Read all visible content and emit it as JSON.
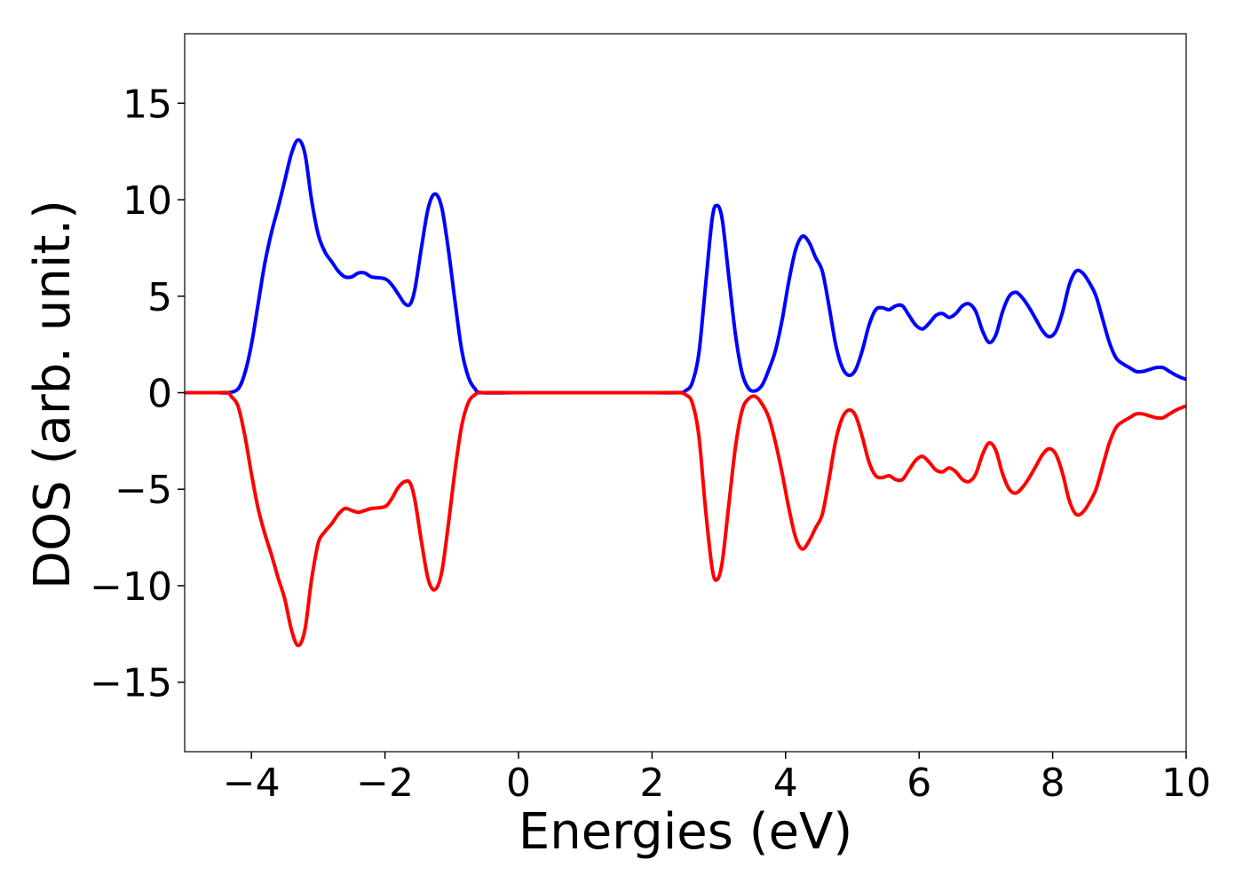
{
  "chart_data": {
    "type": "line",
    "title": "",
    "xlabel": "Energies (eV)",
    "ylabel": "DOS (arb. unit.)",
    "xlim": [
      -5,
      10
    ],
    "ylim": [
      -18.6,
      18.6
    ],
    "grid": false,
    "xticks": [
      -4,
      -2,
      0,
      2,
      4,
      6,
      8,
      10
    ],
    "xtick_labels": [
      "−4",
      "−2",
      "0",
      "2",
      "4",
      "6",
      "8",
      "10"
    ],
    "yticks": [
      -15,
      -10,
      -5,
      0,
      5,
      10,
      15
    ],
    "ytick_labels": [
      "−15",
      "−10",
      "−5",
      "0",
      "5",
      "10",
      "15"
    ],
    "series": [
      {
        "color": "#0000ff",
        "points": [
          [
            -5.0,
            0.0
          ],
          [
            -4.5,
            0.0
          ],
          [
            -4.35,
            0.0
          ],
          [
            -4.2,
            0.2
          ],
          [
            -4.1,
            1.0
          ],
          [
            -4.0,
            2.5
          ],
          [
            -3.9,
            4.6
          ],
          [
            -3.8,
            6.7
          ],
          [
            -3.7,
            8.3
          ],
          [
            -3.6,
            9.6
          ],
          [
            -3.5,
            11.0
          ],
          [
            -3.4,
            12.4
          ],
          [
            -3.3,
            13.1
          ],
          [
            -3.2,
            12.4
          ],
          [
            -3.1,
            10.0
          ],
          [
            -3.0,
            8.2
          ],
          [
            -2.9,
            7.3
          ],
          [
            -2.8,
            6.8
          ],
          [
            -2.7,
            6.3
          ],
          [
            -2.6,
            6.0
          ],
          [
            -2.5,
            6.0
          ],
          [
            -2.4,
            6.2
          ],
          [
            -2.3,
            6.2
          ],
          [
            -2.2,
            6.0
          ],
          [
            -2.0,
            5.9
          ],
          [
            -1.9,
            5.6
          ],
          [
            -1.8,
            5.1
          ],
          [
            -1.7,
            4.6
          ],
          [
            -1.62,
            4.6
          ],
          [
            -1.55,
            5.4
          ],
          [
            -1.45,
            7.6
          ],
          [
            -1.35,
            9.6
          ],
          [
            -1.25,
            10.3
          ],
          [
            -1.15,
            9.6
          ],
          [
            -1.05,
            7.4
          ],
          [
            -0.95,
            4.7
          ],
          [
            -0.85,
            2.2
          ],
          [
            -0.75,
            0.8
          ],
          [
            -0.65,
            0.2
          ],
          [
            -0.55,
            0.0
          ],
          [
            0.0,
            0.0
          ],
          [
            1.0,
            0.0
          ],
          [
            2.0,
            0.0
          ],
          [
            2.4,
            0.0
          ],
          [
            2.5,
            0.1
          ],
          [
            2.6,
            0.5
          ],
          [
            2.7,
            2.0
          ],
          [
            2.8,
            5.5
          ],
          [
            2.9,
            9.0
          ],
          [
            2.97,
            9.7
          ],
          [
            3.05,
            9.0
          ],
          [
            3.15,
            6.0
          ],
          [
            3.25,
            3.0
          ],
          [
            3.35,
            1.0
          ],
          [
            3.45,
            0.2
          ],
          [
            3.55,
            0.1
          ],
          [
            3.65,
            0.4
          ],
          [
            3.75,
            1.2
          ],
          [
            3.85,
            2.2
          ],
          [
            3.95,
            3.8
          ],
          [
            4.05,
            5.8
          ],
          [
            4.15,
            7.4
          ],
          [
            4.25,
            8.1
          ],
          [
            4.35,
            7.8
          ],
          [
            4.45,
            7.0
          ],
          [
            4.55,
            6.3
          ],
          [
            4.65,
            4.5
          ],
          [
            4.75,
            2.5
          ],
          [
            4.85,
            1.3
          ],
          [
            4.95,
            0.9
          ],
          [
            5.05,
            1.2
          ],
          [
            5.15,
            2.2
          ],
          [
            5.25,
            3.5
          ],
          [
            5.35,
            4.3
          ],
          [
            5.45,
            4.4
          ],
          [
            5.55,
            4.3
          ],
          [
            5.65,
            4.5
          ],
          [
            5.75,
            4.5
          ],
          [
            5.85,
            4.0
          ],
          [
            5.95,
            3.5
          ],
          [
            6.05,
            3.3
          ],
          [
            6.15,
            3.6
          ],
          [
            6.25,
            4.0
          ],
          [
            6.35,
            4.1
          ],
          [
            6.45,
            3.9
          ],
          [
            6.55,
            4.1
          ],
          [
            6.65,
            4.5
          ],
          [
            6.75,
            4.6
          ],
          [
            6.85,
            4.2
          ],
          [
            6.95,
            3.2
          ],
          [
            7.05,
            2.6
          ],
          [
            7.15,
            3.0
          ],
          [
            7.25,
            4.2
          ],
          [
            7.35,
            5.0
          ],
          [
            7.45,
            5.2
          ],
          [
            7.55,
            4.9
          ],
          [
            7.65,
            4.4
          ],
          [
            7.75,
            3.8
          ],
          [
            7.85,
            3.2
          ],
          [
            7.95,
            2.9
          ],
          [
            8.05,
            3.2
          ],
          [
            8.15,
            4.2
          ],
          [
            8.25,
            5.6
          ],
          [
            8.35,
            6.3
          ],
          [
            8.45,
            6.2
          ],
          [
            8.55,
            5.7
          ],
          [
            8.65,
            5.0
          ],
          [
            8.75,
            3.8
          ],
          [
            8.85,
            2.6
          ],
          [
            8.95,
            1.8
          ],
          [
            9.05,
            1.5
          ],
          [
            9.15,
            1.3
          ],
          [
            9.25,
            1.1
          ],
          [
            9.35,
            1.1
          ],
          [
            9.45,
            1.2
          ],
          [
            9.55,
            1.3
          ],
          [
            9.65,
            1.3
          ],
          [
            9.75,
            1.1
          ],
          [
            9.85,
            0.9
          ],
          [
            9.95,
            0.75
          ],
          [
            10.0,
            0.7
          ]
        ]
      },
      {
        "color": "#ff0000",
        "points": [
          [
            -5.0,
            0.0
          ],
          [
            -4.5,
            0.0
          ],
          [
            -4.35,
            0.0
          ],
          [
            -4.3,
            -0.2
          ],
          [
            -4.2,
            -0.7
          ],
          [
            -4.1,
            -2.2
          ],
          [
            -4.0,
            -4.2
          ],
          [
            -3.9,
            -6.0
          ],
          [
            -3.8,
            -7.3
          ],
          [
            -3.7,
            -8.4
          ],
          [
            -3.6,
            -9.6
          ],
          [
            -3.5,
            -10.7
          ],
          [
            -3.4,
            -12.3
          ],
          [
            -3.3,
            -13.1
          ],
          [
            -3.2,
            -12.3
          ],
          [
            -3.1,
            -9.7
          ],
          [
            -3.0,
            -7.8
          ],
          [
            -2.9,
            -7.2
          ],
          [
            -2.8,
            -6.8
          ],
          [
            -2.7,
            -6.3
          ],
          [
            -2.6,
            -6.0
          ],
          [
            -2.5,
            -6.1
          ],
          [
            -2.4,
            -6.2
          ],
          [
            -2.3,
            -6.1
          ],
          [
            -2.2,
            -6.0
          ],
          [
            -2.0,
            -5.9
          ],
          [
            -1.9,
            -5.5
          ],
          [
            -1.8,
            -4.9
          ],
          [
            -1.7,
            -4.6
          ],
          [
            -1.62,
            -4.7
          ],
          [
            -1.55,
            -5.6
          ],
          [
            -1.45,
            -7.8
          ],
          [
            -1.35,
            -9.7
          ],
          [
            -1.25,
            -10.2
          ],
          [
            -1.15,
            -9.3
          ],
          [
            -1.05,
            -6.8
          ],
          [
            -0.95,
            -4.0
          ],
          [
            -0.85,
            -1.7
          ],
          [
            -0.75,
            -0.5
          ],
          [
            -0.65,
            -0.1
          ],
          [
            -0.55,
            0.0
          ],
          [
            0.0,
            0.0
          ],
          [
            1.0,
            0.0
          ],
          [
            2.0,
            0.0
          ],
          [
            2.4,
            0.0
          ],
          [
            2.5,
            -0.1
          ],
          [
            2.6,
            -0.5
          ],
          [
            2.7,
            -2.2
          ],
          [
            2.8,
            -6.0
          ],
          [
            2.9,
            -9.1
          ],
          [
            2.97,
            -9.7
          ],
          [
            3.05,
            -8.8
          ],
          [
            3.15,
            -5.8
          ],
          [
            3.25,
            -2.8
          ],
          [
            3.35,
            -0.9
          ],
          [
            3.45,
            -0.3
          ],
          [
            3.55,
            -0.2
          ],
          [
            3.65,
            -0.6
          ],
          [
            3.75,
            -1.3
          ],
          [
            3.85,
            -2.6
          ],
          [
            3.95,
            -4.2
          ],
          [
            4.05,
            -6.0
          ],
          [
            4.15,
            -7.5
          ],
          [
            4.25,
            -8.1
          ],
          [
            4.35,
            -7.7
          ],
          [
            4.45,
            -7.0
          ],
          [
            4.55,
            -6.3
          ],
          [
            4.65,
            -4.5
          ],
          [
            4.75,
            -2.5
          ],
          [
            4.85,
            -1.3
          ],
          [
            4.95,
            -0.9
          ],
          [
            5.05,
            -1.2
          ],
          [
            5.15,
            -2.3
          ],
          [
            5.25,
            -3.6
          ],
          [
            5.35,
            -4.3
          ],
          [
            5.45,
            -4.4
          ],
          [
            5.55,
            -4.3
          ],
          [
            5.65,
            -4.5
          ],
          [
            5.75,
            -4.5
          ],
          [
            5.85,
            -4.0
          ],
          [
            5.95,
            -3.5
          ],
          [
            6.05,
            -3.3
          ],
          [
            6.15,
            -3.6
          ],
          [
            6.25,
            -4.0
          ],
          [
            6.35,
            -4.1
          ],
          [
            6.45,
            -3.9
          ],
          [
            6.55,
            -4.1
          ],
          [
            6.65,
            -4.5
          ],
          [
            6.75,
            -4.6
          ],
          [
            6.85,
            -4.2
          ],
          [
            6.95,
            -3.2
          ],
          [
            7.05,
            -2.6
          ],
          [
            7.15,
            -3.0
          ],
          [
            7.25,
            -4.2
          ],
          [
            7.35,
            -5.0
          ],
          [
            7.45,
            -5.2
          ],
          [
            7.55,
            -4.9
          ],
          [
            7.65,
            -4.4
          ],
          [
            7.75,
            -3.8
          ],
          [
            7.85,
            -3.2
          ],
          [
            7.95,
            -2.9
          ],
          [
            8.05,
            -3.2
          ],
          [
            8.15,
            -4.2
          ],
          [
            8.25,
            -5.6
          ],
          [
            8.35,
            -6.3
          ],
          [
            8.45,
            -6.2
          ],
          [
            8.55,
            -5.7
          ],
          [
            8.65,
            -5.0
          ],
          [
            8.75,
            -3.8
          ],
          [
            8.85,
            -2.6
          ],
          [
            8.95,
            -1.8
          ],
          [
            9.05,
            -1.5
          ],
          [
            9.15,
            -1.3
          ],
          [
            9.25,
            -1.1
          ],
          [
            9.35,
            -1.1
          ],
          [
            9.45,
            -1.2
          ],
          [
            9.55,
            -1.3
          ],
          [
            9.65,
            -1.3
          ],
          [
            9.75,
            -1.1
          ],
          [
            9.85,
            -0.9
          ],
          [
            9.95,
            -0.75
          ],
          [
            10.0,
            -0.7
          ]
        ]
      }
    ]
  }
}
